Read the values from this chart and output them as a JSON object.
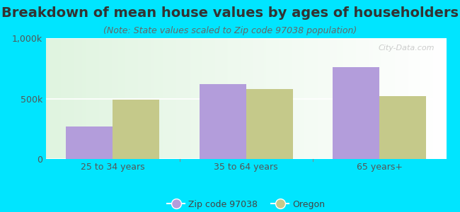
{
  "title": "Breakdown of mean house values by ages of householders",
  "subtitle": "(Note: State values scaled to Zip code 97038 population)",
  "categories": [
    "25 to 34 years",
    "35 to 64 years",
    "65 years+"
  ],
  "zip_values": [
    270000,
    620000,
    760000
  ],
  "oregon_values": [
    490000,
    580000,
    520000
  ],
  "ylim": [
    0,
    1000000
  ],
  "yticks": [
    0,
    500000,
    1000000
  ],
  "ytick_labels": [
    "0",
    "500k",
    "1,000k"
  ],
  "zip_color": "#b39ddb",
  "oregon_color": "#c5c98a",
  "background_outer": "#00e5ff",
  "title_fontsize": 14,
  "subtitle_fontsize": 9,
  "legend_zip_label": "Zip code 97038",
  "legend_oregon_label": "Oregon",
  "bar_width": 0.35,
  "watermark": "City-Data.com"
}
